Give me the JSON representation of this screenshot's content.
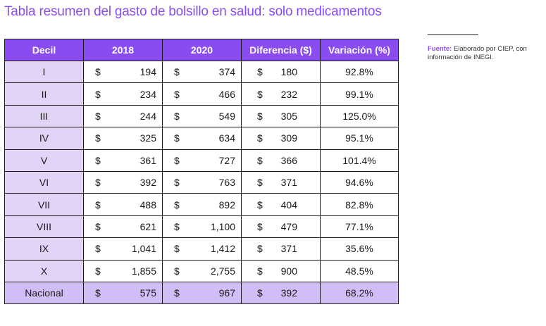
{
  "title": "Tabla resumen del gasto de bolsillo en salud: solo medicamentos",
  "table": {
    "headers": {
      "decil": "Decil",
      "y2018": "2018",
      "y2020": "2020",
      "diff": "Diferencia ($)",
      "var": "Variación (%)"
    },
    "currency": "$",
    "rows": [
      {
        "decil": "I",
        "v2018": "194",
        "v2020": "374",
        "diff": "180",
        "var": "92.8%"
      },
      {
        "decil": "II",
        "v2018": "234",
        "v2020": "466",
        "diff": "232",
        "var": "99.1%"
      },
      {
        "decil": "III",
        "v2018": "244",
        "v2020": "549",
        "diff": "305",
        "var": "125.0%"
      },
      {
        "decil": "IV",
        "v2018": "325",
        "v2020": "634",
        "diff": "309",
        "var": "95.1%"
      },
      {
        "decil": "V",
        "v2018": "361",
        "v2020": "727",
        "diff": "366",
        "var": "101.4%"
      },
      {
        "decil": "VI",
        "v2018": "392",
        "v2020": "763",
        "diff": "371",
        "var": "94.6%"
      },
      {
        "decil": "VII",
        "v2018": "488",
        "v2020": "892",
        "diff": "404",
        "var": "82.8%"
      },
      {
        "decil": "VIII",
        "v2018": "621",
        "v2020": "1,100",
        "diff": "479",
        "var": "77.1%"
      },
      {
        "decil": "IX",
        "v2018": "1,041",
        "v2020": "1,412",
        "diff": "371",
        "var": "35.6%"
      },
      {
        "decil": "X",
        "v2018": "1,855",
        "v2020": "2,755",
        "diff": "900",
        "var": "48.5%"
      }
    ],
    "total": {
      "decil": "Nacional",
      "v2018": "575",
      "v2020": "967",
      "diff": "392",
      "var": "68.2%"
    }
  },
  "source": {
    "label": "Fuente:",
    "text": "Elaborado por CIEP, con información de INEGI."
  },
  "colors": {
    "accent": "#8a4cf0",
    "row_label_bg": "#e1d4f7",
    "total_bg": "#d3bdf7"
  }
}
